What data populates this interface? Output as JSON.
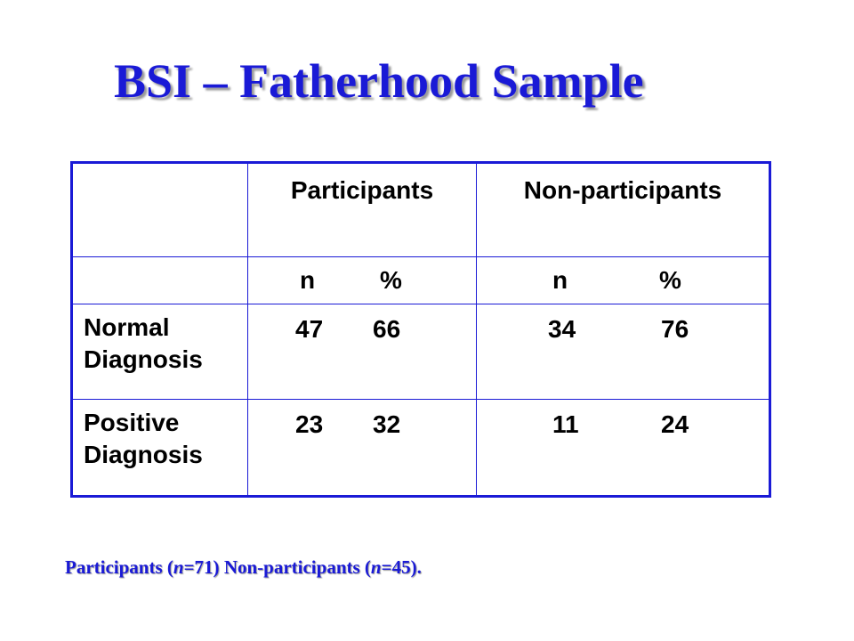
{
  "slide": {
    "title": "BSI – Fatherhood Sample"
  },
  "table": {
    "headers": [
      "",
      "Participants",
      "Non-participants"
    ],
    "subheaders": {
      "n": "n",
      "pct": "%"
    },
    "rows": [
      {
        "label_line1": "Normal",
        "label_line2": "Diagnosis",
        "participants_n": "47",
        "participants_pct": "66",
        "nonparticipants_n": "34",
        "nonparticipants_pct": "76"
      },
      {
        "label_line1": "Positive",
        "label_line2": "Diagnosis",
        "participants_n": "23",
        "participants_pct": "32",
        "nonparticipants_n": "11",
        "nonparticipants_pct": "24"
      }
    ]
  },
  "footnote": {
    "participants_label": "Participants",
    "participants_n_var": "n",
    "participants_n_value": "=71)",
    "nonparticipants_label": "Non-participants",
    "nonparticipants_n_var": "n",
    "nonparticipants_n_value": "=45)."
  },
  "colors": {
    "accent": "#1a1ad6",
    "text": "#000000",
    "background": "#ffffff"
  }
}
